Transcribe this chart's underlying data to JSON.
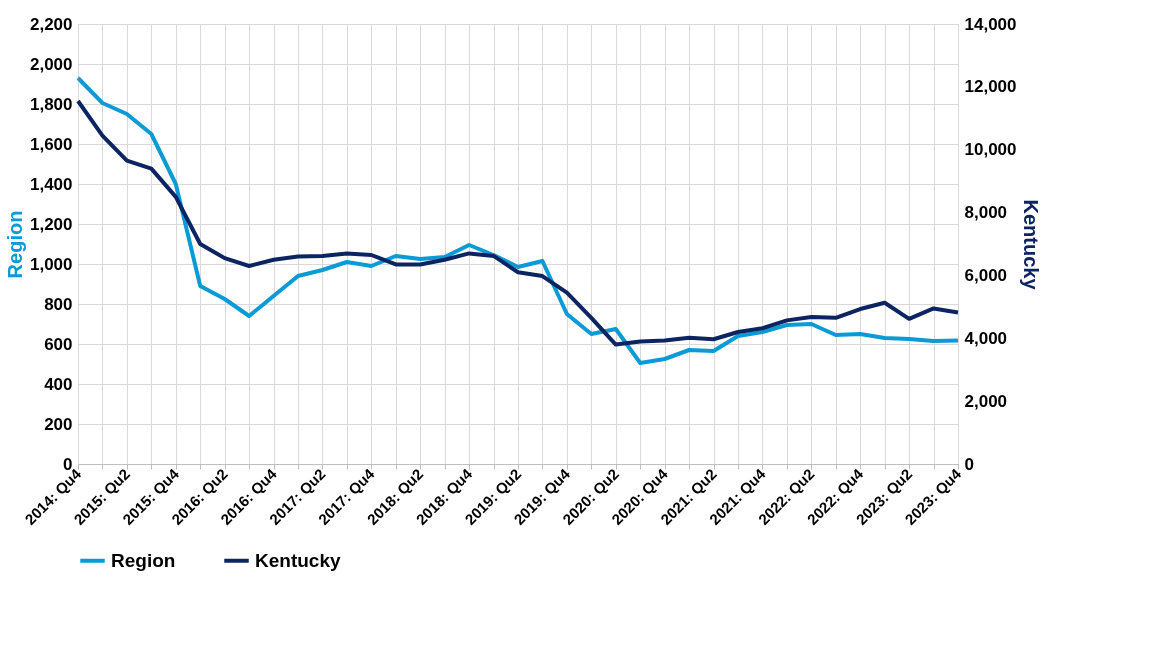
{
  "chart_data": {
    "type": "line",
    "categories": [
      "2014: Qu4",
      null,
      "2015: Qu2",
      null,
      "2015: Qu4",
      null,
      "2016: Qu2",
      null,
      "2016: Qu4",
      null,
      "2017: Qu2",
      null,
      "2017: Qu4",
      null,
      "2018: Qu2",
      null,
      "2018: Qu4",
      null,
      "2019: Qu2",
      null,
      "2019: Qu4",
      null,
      "2020: Qu2",
      null,
      "2020: Qu4",
      null,
      "2021: Qu2",
      null,
      "2021: Qu4",
      null,
      "2022: Qu2",
      null,
      "2022: Qu4",
      null,
      "2023: Qu2",
      null,
      "2023: Qu4"
    ],
    "series": [
      {
        "name": "Region",
        "color": "#0a9bd6",
        "values": [
          1930,
          1805,
          1750,
          1650,
          1400,
          890,
          825,
          740,
          840,
          940,
          970,
          1010,
          990,
          1040,
          1025,
          1035,
          1095,
          1045,
          985,
          1015,
          750,
          650,
          675,
          505,
          525,
          570,
          565,
          640,
          660,
          695,
          700,
          645,
          650,
          630,
          625,
          615,
          618
        ]
      },
      {
        "name": "Kentucky",
        "color": "#0c2461",
        "axis": "y2",
        "values": [
          11550,
          10450,
          9650,
          9400,
          8500,
          7000,
          6550,
          6300,
          6500,
          6600,
          6620,
          6700,
          6650,
          6350,
          6350,
          6500,
          6700,
          6620,
          6100,
          5980,
          5450,
          4650,
          3800,
          3900,
          3930,
          4020,
          3970,
          4200,
          4320,
          4570,
          4680,
          4650,
          4930,
          5130,
          4620,
          4950,
          4820
        ]
      }
    ],
    "ylabel": "Region",
    "y2label": "Kentucky",
    "ylim": [
      0,
      2200
    ],
    "yticks": [
      0,
      200,
      400,
      600,
      800,
      {
        "value": 1000,
        "label": "1,000"
      },
      {
        "value": 1200,
        "label": "1,200"
      },
      {
        "value": 1400,
        "label": "1,400"
      },
      {
        "value": 1600,
        "label": "1,600"
      },
      {
        "value": 1800,
        "label": "1,800"
      },
      {
        "value": 2000,
        "label": "2,000"
      },
      {
        "value": 2200,
        "label": "2,200"
      }
    ],
    "y2lim": [
      0,
      14000
    ],
    "y2ticks": [
      0,
      {
        "value": 2000,
        "label": "2,000"
      },
      {
        "value": 4000,
        "label": "4,000"
      },
      {
        "value": 6000,
        "label": "6,000"
      },
      {
        "value": 8000,
        "label": "8,000"
      },
      {
        "value": 10000,
        "label": "10,000"
      },
      {
        "value": 12000,
        "label": "12,000"
      },
      {
        "value": 14000,
        "label": "14,000"
      }
    ],
    "grid": true,
    "legend": "bottom",
    "marker": "none",
    "line_style": "solid"
  }
}
